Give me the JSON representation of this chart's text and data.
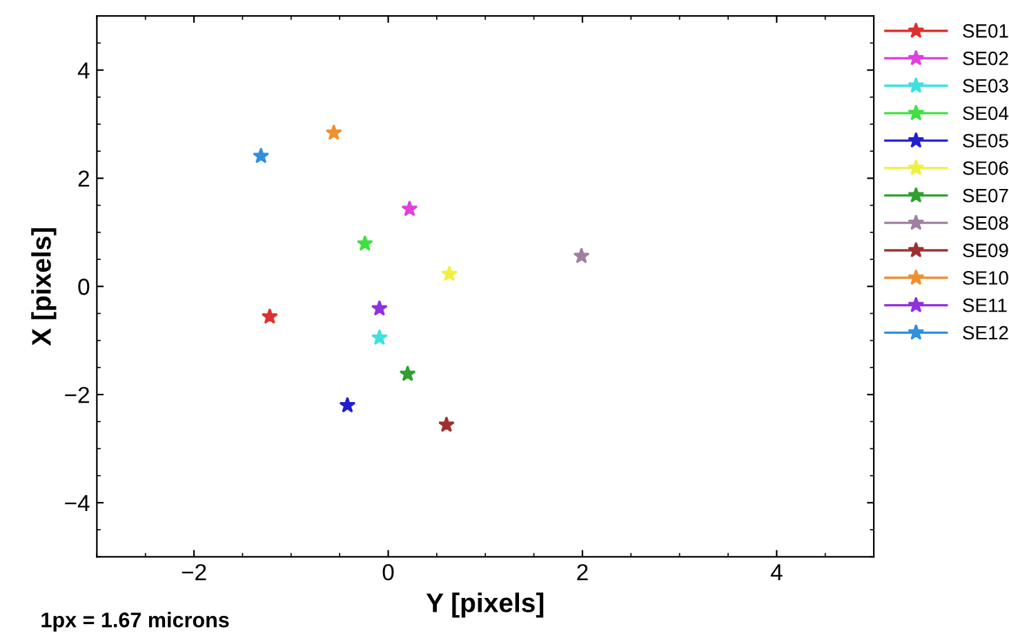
{
  "chart_data": {
    "type": "scatter",
    "xlabel": "Y [pixels]",
    "ylabel": "X [pixels]",
    "annotations": [
      "1px = 1.67 microns"
    ],
    "xlim": [
      -3,
      5
    ],
    "xticks": [
      -2,
      0,
      2,
      4
    ],
    "ylim": [
      -5,
      5
    ],
    "yticks": [
      -4,
      -2,
      0,
      2,
      4
    ],
    "marker": "star",
    "grid": false,
    "legend": "right",
    "series": [
      {
        "name": "SE01",
        "color": "#e03030",
        "x": [
          -1.22
        ],
        "values": [
          -0.56
        ]
      },
      {
        "name": "SE02",
        "color": "#e040e0",
        "x": [
          0.22
        ],
        "values": [
          1.43
        ]
      },
      {
        "name": "SE03",
        "color": "#40e0e0",
        "x": [
          -0.09
        ],
        "values": [
          -0.95
        ]
      },
      {
        "name": "SE04",
        "color": "#40e040",
        "x": [
          -0.24
        ],
        "values": [
          0.79
        ]
      },
      {
        "name": "SE05",
        "color": "#2020d0",
        "x": [
          -0.42
        ],
        "values": [
          -2.2
        ]
      },
      {
        "name": "SE06",
        "color": "#f0f040",
        "x": [
          0.63
        ],
        "values": [
          0.23
        ]
      },
      {
        "name": "SE07",
        "color": "#30a030",
        "x": [
          0.2
        ],
        "values": [
          -1.62
        ]
      },
      {
        "name": "SE08",
        "color": "#a080a0",
        "x": [
          1.99
        ],
        "values": [
          0.56
        ]
      },
      {
        "name": "SE09",
        "color": "#a03030",
        "x": [
          0.6
        ],
        "values": [
          -2.56
        ]
      },
      {
        "name": "SE10",
        "color": "#f09030",
        "x": [
          -0.56
        ],
        "values": [
          2.84
        ]
      },
      {
        "name": "SE11",
        "color": "#9030e0",
        "x": [
          -0.09
        ],
        "values": [
          -0.41
        ]
      },
      {
        "name": "SE12",
        "color": "#3090e0",
        "x": [
          -1.31
        ],
        "values": [
          2.41
        ]
      }
    ]
  }
}
